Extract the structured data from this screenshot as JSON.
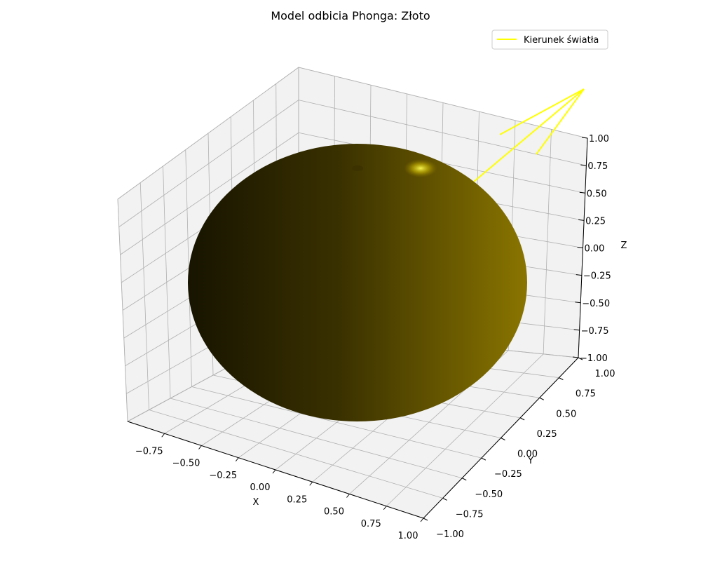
{
  "colors": {
    "pane_face": "#f2f2f2",
    "pane_edge": "#d0d0d0",
    "grid": "#b0b0b0",
    "light_line": "#ffff00",
    "sphere_dark": "#171400",
    "sphere_mid": "#3a3100",
    "sphere_bright": "#8a7500",
    "highlight": "#ffee33"
  },
  "chart_data": {
    "type": "surface3d",
    "title": "Model odbicia Phonga: Złoto",
    "xlabel": "X",
    "ylabel": "Y",
    "zlabel": "Z",
    "xlim": [
      -1.0,
      1.0
    ],
    "ylim": [
      -1.0,
      1.0
    ],
    "zlim": [
      -1.0,
      1.0
    ],
    "x_ticks": [
      "−0.75",
      "−0.50",
      "−0.25",
      "0.00",
      "0.25",
      "0.50",
      "0.75",
      "1.00"
    ],
    "y_ticks": [
      "−1.00",
      "−0.75",
      "−0.50",
      "−0.25",
      "0.00",
      "0.25",
      "0.50",
      "0.75",
      "1.00"
    ],
    "z_ticks": [
      "−1.00",
      "−0.75",
      "−0.50",
      "−0.25",
      "0.00",
      "0.25",
      "0.50",
      "0.75",
      "1.00"
    ],
    "grid": true,
    "legend": {
      "entries": [
        "Kierunek światła"
      ],
      "location": "upper right"
    },
    "surface": {
      "shape": "unit sphere",
      "material": "Złoto"
    }
  }
}
